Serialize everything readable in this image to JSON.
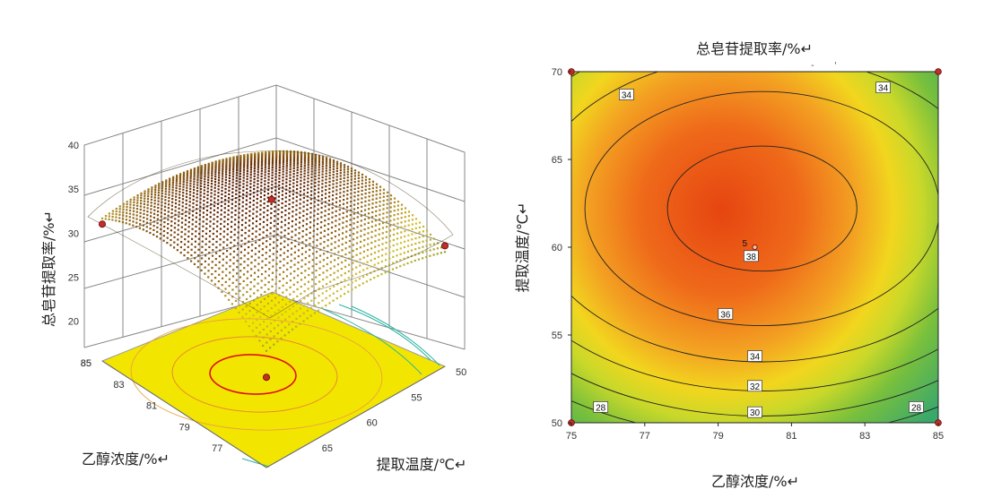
{
  "chart_data": [
    {
      "type": "surface3d",
      "zlabel": "总皂苷提取率/%↵",
      "xlabel": "乙醇浓度/%↵",
      "ylabel": "提取温度/℃↵",
      "x_ticks": [
        "77",
        "79",
        "81",
        "83",
        "85"
      ],
      "y_ticks": [
        "50",
        "55",
        "60",
        "65"
      ],
      "z_ticks": [
        "20",
        "25",
        "30",
        "35",
        "40"
      ],
      "xlim": [
        75,
        85
      ],
      "ylim": [
        50,
        70
      ],
      "zlim": [
        17,
        40
      ],
      "surface": {
        "peak_x": 80.2,
        "peak_y": 62.2,
        "peak_z": 38.8,
        "ax": 0.12,
        "ay": 0.063
      },
      "design_points": [
        {
          "x": 85,
          "y": 70,
          "z": 31
        },
        {
          "x": 80,
          "y": 60,
          "z": 38.6
        },
        {
          "x": 75,
          "y": 50,
          "z": 27.5
        },
        {
          "x": 85,
          "y": 50,
          "z": 21
        }
      ],
      "colors": {
        "low": "#556b2f",
        "mid": "#d4c030",
        "high": "#5a1a00",
        "floor": "#f2e600",
        "floor_contour": "#e01010",
        "floor_contour_low": "#29b3a0"
      }
    },
    {
      "type": "contour",
      "title": "总皂苷提取率/%↵",
      "xlabel": "乙醇浓度/%↵",
      "ylabel": "提取温度/℃↵",
      "x_ticks": [
        "75",
        "77",
        "79",
        "81",
        "83",
        "85"
      ],
      "y_ticks": [
        "50",
        "55",
        "60",
        "65",
        "70"
      ],
      "xlim": [
        75,
        85
      ],
      "ylim": [
        50,
        70
      ],
      "surface": {
        "peak_x": 80.2,
        "peak_y": 62.2,
        "peak_z": 38.8,
        "ax": 0.12,
        "ay": 0.063
      },
      "contour_levels": [
        28,
        30,
        32,
        34,
        36,
        38
      ],
      "contour_labels": [
        {
          "text": "34",
          "x": 76.5,
          "y": 68.7
        },
        {
          "text": "34",
          "x": 83.5,
          "y": 69.1
        },
        {
          "text": "38",
          "x": 79.9,
          "y": 59.5
        },
        {
          "text": "36",
          "x": 79.2,
          "y": 56.2
        },
        {
          "text": "34",
          "x": 80.0,
          "y": 53.8
        },
        {
          "text": "32",
          "x": 80.0,
          "y": 52.1
        },
        {
          "text": "30",
          "x": 80.0,
          "y": 50.6
        },
        {
          "text": "28",
          "x": 75.8,
          "y": 50.9
        },
        {
          "text": "28",
          "x": 84.4,
          "y": 50.9
        }
      ],
      "center_label": {
        "text": "5",
        "x": 79.8,
        "y": 60.2
      },
      "design_points": [
        {
          "x": 75,
          "y": 70
        },
        {
          "x": 85,
          "y": 70
        },
        {
          "x": 75,
          "y": 50
        },
        {
          "x": 85,
          "y": 50
        },
        {
          "x": 80,
          "y": 60
        }
      ],
      "colors": {
        "low": "#3aa86b",
        "mid": "#f0e21f",
        "high": "#e34710",
        "line": "#222222"
      }
    }
  ]
}
